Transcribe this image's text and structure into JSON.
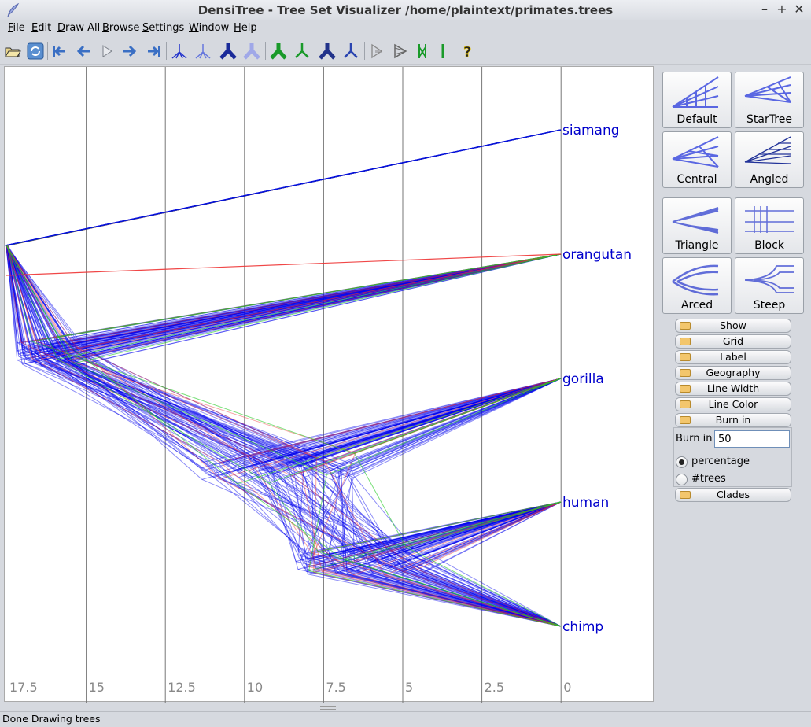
{
  "window": {
    "title": "DensiTree - Tree Set Visualizer /home/plaintext/primates.trees",
    "controls": [
      "–",
      "+",
      "✕"
    ]
  },
  "menu": [
    "File",
    "Edit",
    "Draw All",
    "Browse",
    "Settings",
    "Window",
    "Help"
  ],
  "toolbar": {
    "icons": [
      "open-icon",
      "refresh-icon",
      "first-icon",
      "prev-icon",
      "play-icon",
      "next-icon",
      "last-icon",
      "tree-blue-icon",
      "tree-blue-light-icon",
      "tree-dark-blue-icon",
      "tree-lavender-icon",
      "tree-green-icon",
      "tree-green-light-icon",
      "tree-navy-icon",
      "tree-blue-small-icon",
      "collapse-icon",
      "expand-icon",
      "parallel-green-icon",
      "single-bar-icon",
      "help-icon"
    ]
  },
  "plot": {
    "axis_ticks": [
      "17.5",
      "15",
      "12.5",
      "10",
      "7.5",
      "5",
      "2.5",
      "0"
    ],
    "taxa": [
      "siamang",
      "orangutan",
      "gorilla",
      "human",
      "chimp"
    ],
    "colors": {
      "main": "#0000ee",
      "alt1": "#ee3333",
      "alt2": "#22cc22",
      "grid": "#777777",
      "label": "#0000cc"
    }
  },
  "shape_buttons": [
    "Default",
    "StarTree",
    "Central",
    "Angled",
    "Triangle",
    "Block",
    "Arced",
    "Steep"
  ],
  "sections": [
    "Show",
    "Grid",
    "Label",
    "Geography",
    "Line Width",
    "Line Color",
    "Burn in",
    "Clades"
  ],
  "burn_in": {
    "label": "Burn in",
    "value": "50",
    "options": [
      "percentage",
      "#trees"
    ],
    "selected": "percentage"
  },
  "status": "Done Drawing trees"
}
